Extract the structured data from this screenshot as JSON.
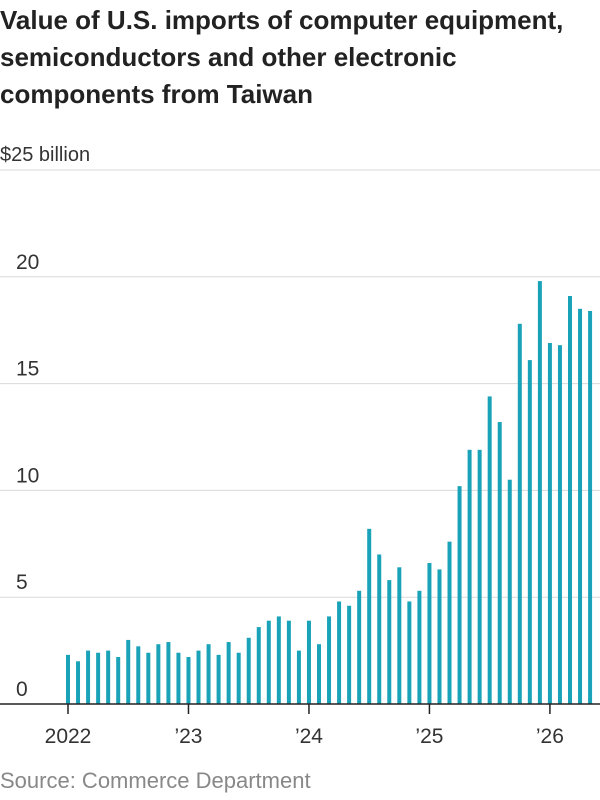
{
  "chart_data": {
    "type": "bar",
    "title": "Value of U.S. imports of computer equipment, semiconductors and other electronic components from Taiwan",
    "ylabel": "$25 billion",
    "source": "Source: Commerce Department",
    "ylim": [
      0,
      25
    ],
    "yticks": [
      "0",
      "5",
      "10",
      "15",
      "20"
    ],
    "xtick_labels": [
      {
        "label": "2022",
        "month_index": 0
      },
      {
        "label": "’23",
        "month_index": 12
      },
      {
        "label": "’24",
        "month_index": 24
      },
      {
        "label": "’25",
        "month_index": 36
      },
      {
        "label": "’26",
        "month_index": 48
      }
    ],
    "bar_color": "#1aa3b8",
    "series": [
      {
        "values": [
          2.3,
          2.0,
          2.5,
          2.4,
          2.5,
          2.2,
          3.0,
          2.7,
          2.4,
          2.8,
          2.9,
          2.4,
          2.2,
          2.5,
          2.8,
          2.3,
          2.9,
          2.4,
          3.1,
          3.6,
          3.9,
          4.1,
          3.9,
          2.5,
          3.9,
          2.8,
          4.1,
          4.8,
          4.6,
          5.3,
          8.2,
          7.0,
          5.8,
          6.4,
          4.8,
          5.3,
          6.6,
          6.3,
          7.6,
          10.2,
          11.9,
          11.9,
          14.4,
          13.2,
          10.5,
          17.8,
          16.1,
          19.8,
          16.9,
          16.8,
          19.1,
          18.5,
          18.4
        ]
      }
    ]
  }
}
